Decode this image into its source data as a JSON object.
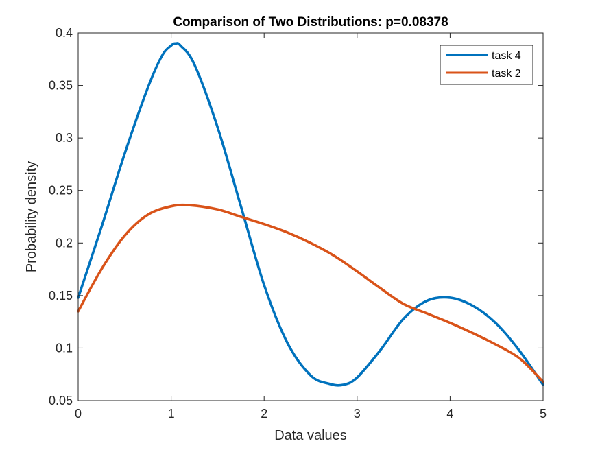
{
  "chart_data": {
    "type": "line",
    "title": "Comparison of Two Distributions: p=0.08378",
    "xlabel": "Data values",
    "ylabel": "Probability density",
    "xlim": [
      0,
      5
    ],
    "ylim": [
      0.05,
      0.4
    ],
    "x_ticks": [
      "0",
      "1",
      "2",
      "3",
      "4",
      "5"
    ],
    "y_ticks": [
      "0.05",
      "0.1",
      "0.15",
      "0.2",
      "0.25",
      "0.3",
      "0.35",
      "0.4"
    ],
    "x_tick_values": [
      0,
      1,
      2,
      3,
      4,
      5
    ],
    "y_tick_values": [
      0.05,
      0.1,
      0.15,
      0.2,
      0.25,
      0.3,
      0.35,
      0.4
    ],
    "grid": false,
    "legend_position": "top-right",
    "series": [
      {
        "name": "task 4",
        "color": "#0072BD",
        "x": [
          0,
          0.25,
          0.5,
          0.75,
          0.9,
          1.0,
          1.05,
          1.1,
          1.25,
          1.5,
          1.75,
          2.0,
          2.25,
          2.5,
          2.7,
          2.85,
          3.0,
          3.25,
          3.5,
          3.75,
          4.0,
          4.25,
          4.5,
          4.75,
          5.0
        ],
        "y": [
          0.148,
          0.215,
          0.285,
          0.348,
          0.378,
          0.388,
          0.39,
          0.388,
          0.37,
          0.31,
          0.235,
          0.16,
          0.105,
          0.074,
          0.066,
          0.065,
          0.072,
          0.098,
          0.128,
          0.145,
          0.148,
          0.14,
          0.123,
          0.097,
          0.065
        ]
      },
      {
        "name": "task 2",
        "color": "#D95319",
        "x": [
          0,
          0.25,
          0.5,
          0.75,
          1.0,
          1.2,
          1.5,
          1.75,
          2.0,
          2.25,
          2.5,
          2.75,
          3.0,
          3.25,
          3.5,
          3.75,
          4.0,
          4.25,
          4.5,
          4.75,
          5.0
        ],
        "y": [
          0.135,
          0.175,
          0.207,
          0.227,
          0.235,
          0.236,
          0.232,
          0.225,
          0.218,
          0.21,
          0.2,
          0.188,
          0.173,
          0.157,
          0.142,
          0.133,
          0.124,
          0.114,
          0.103,
          0.09,
          0.068
        ]
      }
    ]
  }
}
